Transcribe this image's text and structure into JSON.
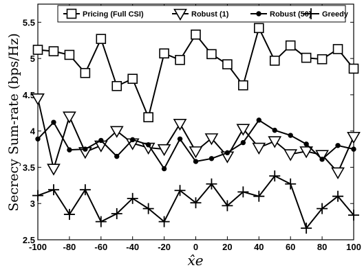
{
  "chart_data": {
    "type": "line",
    "title": "",
    "xlabel": "x̂e",
    "ylabel": "Secrecy Sum-rate (bps/Hz)",
    "xlim": [
      -100,
      100
    ],
    "ylim": [
      2.5,
      5.75
    ],
    "xticks": [
      -100,
      -80,
      -60,
      -40,
      -20,
      0,
      20,
      40,
      60,
      80,
      100
    ],
    "yticks": [
      2.5,
      3,
      3.5,
      4,
      4.5,
      5,
      5.5
    ],
    "xtick_labels": [
      "-100",
      "-80",
      "-60",
      "-40",
      "-20",
      "0",
      "20",
      "40",
      "60",
      "80",
      "100"
    ],
    "ytick_labels": [
      "2.5",
      "3",
      "3.5",
      "4",
      "4.5",
      "5",
      "5.5"
    ],
    "grid": false,
    "legend_position": "top",
    "x": [
      -100,
      -90,
      -80,
      -70,
      -60,
      -50,
      -40,
      -30,
      -20,
      -10,
      0,
      10,
      20,
      30,
      40,
      50,
      60,
      70,
      80,
      90,
      100
    ],
    "series": [
      {
        "name": "Pricing (Full CSI)",
        "marker": "square",
        "values": [
          5.12,
          5.1,
          5.05,
          4.8,
          5.27,
          4.62,
          4.72,
          4.19,
          5.07,
          4.98,
          5.33,
          5.06,
          4.92,
          4.63,
          5.42,
          4.97,
          5.18,
          5.01,
          4.99,
          5.13,
          4.86
        ]
      },
      {
        "name": "Robust (1)",
        "marker": "triangle-down",
        "values": [
          4.45,
          3.48,
          4.2,
          3.71,
          3.8,
          4.0,
          3.83,
          3.77,
          3.75,
          4.1,
          3.72,
          3.9,
          3.65,
          4.03,
          3.77,
          3.86,
          3.68,
          3.72,
          3.67,
          3.43,
          3.92
        ]
      },
      {
        "name": "Robust (50)",
        "marker": "dot",
        "values": [
          3.89,
          4.12,
          3.74,
          3.75,
          3.87,
          3.65,
          3.88,
          3.81,
          3.48,
          3.89,
          3.58,
          3.62,
          3.7,
          3.84,
          4.15,
          4.01,
          3.94,
          3.82,
          3.61,
          3.8,
          3.75
        ]
      },
      {
        "name": "Greedy",
        "marker": "plus",
        "values": [
          3.11,
          3.19,
          2.85,
          3.19,
          2.75,
          2.86,
          3.07,
          2.93,
          2.75,
          3.18,
          3.01,
          3.27,
          2.97,
          3.16,
          3.1,
          3.38,
          3.27,
          2.66,
          2.93,
          3.1,
          2.84
        ]
      }
    ]
  }
}
